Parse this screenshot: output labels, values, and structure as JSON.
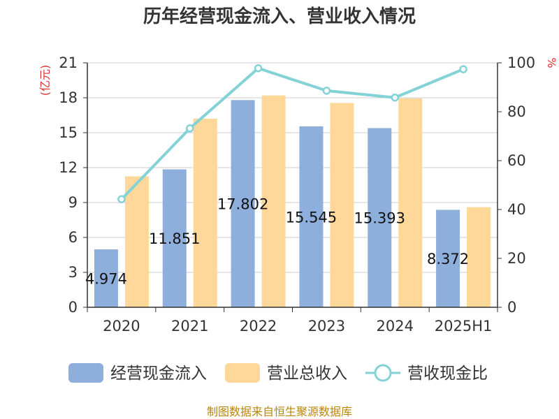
{
  "chart_data": {
    "type": "bar",
    "title": "历年经营现金流入、营业收入情况",
    "categories": [
      "2020",
      "2021",
      "2022",
      "2023",
      "2024",
      "2025H1"
    ],
    "y_left": {
      "unit": "(亿元)",
      "ylim": [
        0,
        21
      ],
      "ticks": [
        "0",
        "3",
        "6",
        "9",
        "12",
        "15",
        "18",
        "21"
      ]
    },
    "y_right": {
      "unit": "%",
      "ylim": [
        0,
        100
      ],
      "ticks": [
        "0",
        "20",
        "40",
        "60",
        "80",
        "100"
      ]
    },
    "grid": true,
    "series": [
      {
        "name": "经营现金流入",
        "type": "bar",
        "axis": "left",
        "color": "#8eaedb",
        "values": [
          4.974,
          11.851,
          17.802,
          15.545,
          15.393,
          8.372
        ],
        "data_labels": [
          "4.974",
          "11.851",
          "17.802",
          "15.545",
          "15.393",
          "8.372"
        ]
      },
      {
        "name": "营业总收入",
        "type": "bar",
        "axis": "left",
        "color": "#ffd799",
        "values": [
          11.25,
          16.2,
          18.2,
          17.55,
          17.95,
          8.6
        ]
      },
      {
        "name": "营收现金比",
        "type": "line",
        "axis": "right",
        "color": "#82d2d6",
        "values": [
          44.2,
          73.2,
          97.8,
          88.6,
          85.8,
          97.4
        ]
      }
    ],
    "legend_position": "bottom"
  },
  "source_text": "制图数据来自恒生聚源数据库"
}
